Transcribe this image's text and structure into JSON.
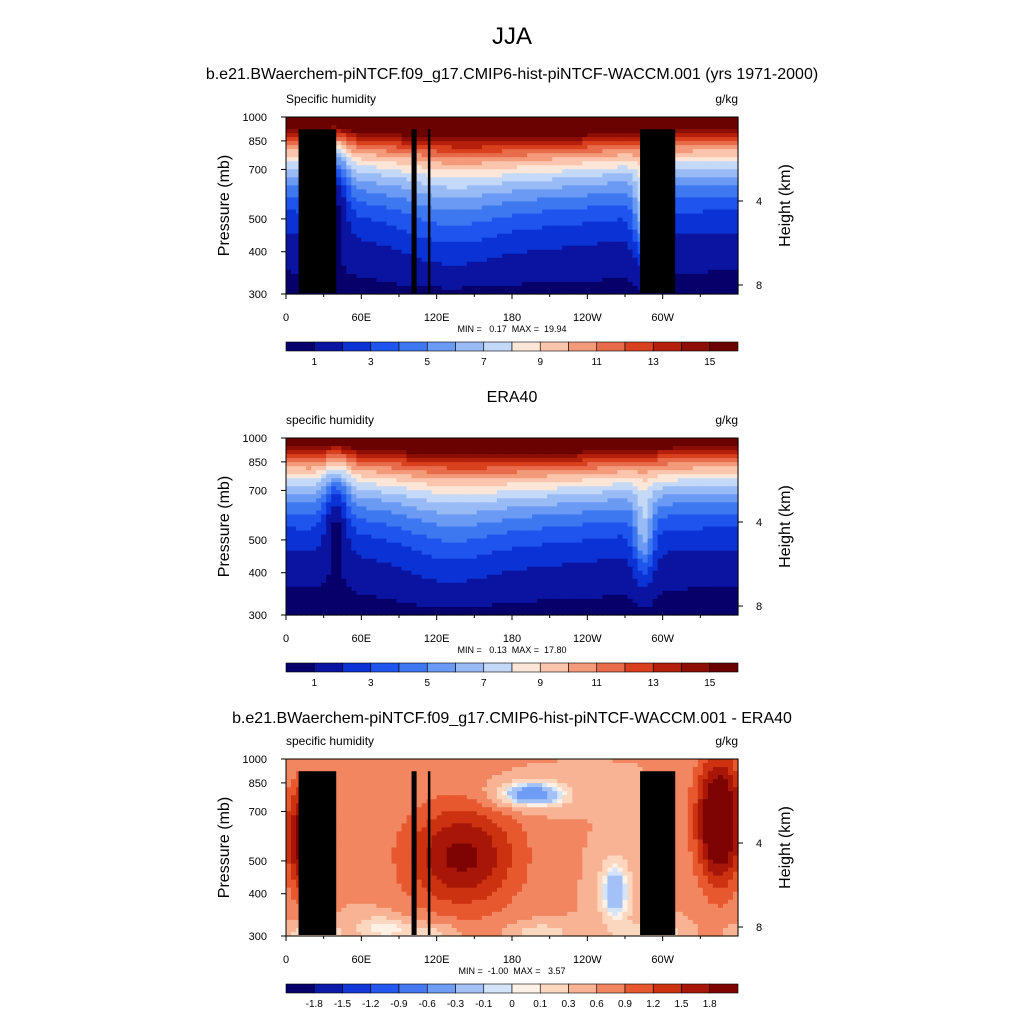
{
  "figure": {
    "main_title": "JJA"
  },
  "panels": [
    {
      "id": "model",
      "title": "b.e21.BWaerchem-piNTCF.f09_g17.CMIP6-hist-piNTCF-WACCM.001 (yrs 1971-2000)",
      "left_label": "Specific humidity",
      "right_label": "g/kg",
      "stats": "MIN =   0.17  MAX =  19.94",
      "kind": "abs",
      "colorbar_labels": [
        "1",
        "3",
        "5",
        "7",
        "9",
        "11",
        "13",
        "15"
      ]
    },
    {
      "id": "obs",
      "title": "ERA40",
      "left_label": "specific humidity",
      "right_label": "g/kg",
      "stats": "MIN =   0.13  MAX =  17.80",
      "kind": "abs",
      "colorbar_labels": [
        "1",
        "3",
        "5",
        "7",
        "9",
        "11",
        "13",
        "15"
      ]
    },
    {
      "id": "diff",
      "title": "b.e21.BWaerchem-piNTCF.f09_g17.CMIP6-hist-piNTCF-WACCM.001 - ERA40",
      "left_label": "specific humidity",
      "right_label": "g/kg",
      "stats": "MIN =  -1.00  MAX =   3.57",
      "kind": "diff",
      "colorbar_labels": [
        "-1.8",
        "-1.5",
        "-1.2",
        "-0.9",
        "-0.6",
        "-0.3",
        "-0.1",
        "0",
        "0.1",
        "0.3",
        "0.6",
        "0.9",
        "1.2",
        "1.5",
        "1.8"
      ]
    }
  ],
  "chart_data": [
    {
      "type": "heatmap",
      "title": "b.e21.BWaerchem-piNTCF.f09_g17.CMIP6-hist-piNTCF-WACCM.001 (yrs 1971-2000)",
      "subtitle": "Specific humidity",
      "units": "g/kg",
      "xlabel": "",
      "ylabel": "Pressure (mb)",
      "ylabel_right": "Height (km)",
      "x_ticks": [
        "0",
        "60E",
        "120E",
        "180",
        "120W",
        "60W"
      ],
      "x_tick_values": [
        0,
        60,
        120,
        180,
        240,
        300
      ],
      "xlim": [
        0,
        360
      ],
      "y_ticks": [
        "300",
        "400",
        "500",
        "700",
        "850",
        "1000"
      ],
      "y_tick_values": [
        300,
        400,
        500,
        700,
        850,
        1000
      ],
      "ylim": [
        1000,
        300
      ],
      "y_scale": "log",
      "right_ticks": [
        "8",
        "4"
      ],
      "right_tick_values": [
        8,
        4
      ],
      "min": 0.17,
      "max": 19.94,
      "contour_levels": [
        1,
        2,
        3,
        4,
        5,
        6,
        7,
        8,
        9,
        10,
        11,
        12,
        13,
        14,
        15
      ],
      "colorbar_ticks": [
        1,
        3,
        5,
        7,
        9,
        11,
        13,
        15
      ],
      "mountain_mask": [
        {
          "lon": [
            10,
            40
          ],
          "p_top": 920
        },
        {
          "lon": [
            28,
            35
          ],
          "p_top": 850
        },
        {
          "lon": [
            100,
            104
          ],
          "p_top": 920
        },
        {
          "lon": [
            113,
            115
          ],
          "p_top": 920
        },
        {
          "lon": [
            282,
            310
          ],
          "p_top": 920
        }
      ]
    },
    {
      "type": "heatmap",
      "title": "ERA40",
      "subtitle": "specific humidity",
      "units": "g/kg",
      "xlabel": "",
      "ylabel": "Pressure (mb)",
      "ylabel_right": "Height (km)",
      "x_ticks": [
        "0",
        "60E",
        "120E",
        "180",
        "120W",
        "60W"
      ],
      "x_tick_values": [
        0,
        60,
        120,
        180,
        240,
        300
      ],
      "xlim": [
        0,
        360
      ],
      "y_ticks": [
        "300",
        "400",
        "500",
        "700",
        "850",
        "1000"
      ],
      "y_tick_values": [
        300,
        400,
        500,
        700,
        850,
        1000
      ],
      "ylim": [
        1000,
        300
      ],
      "y_scale": "log",
      "right_ticks": [
        "8",
        "4"
      ],
      "right_tick_values": [
        8,
        4
      ],
      "min": 0.13,
      "max": 17.8,
      "contour_levels": [
        1,
        2,
        3,
        4,
        5,
        6,
        7,
        8,
        9,
        10,
        11,
        12,
        13,
        14,
        15
      ],
      "colorbar_ticks": [
        1,
        3,
        5,
        7,
        9,
        11,
        13,
        15
      ],
      "mountain_mask": []
    },
    {
      "type": "heatmap",
      "title": "b.e21.BWaerchem-piNTCF.f09_g17.CMIP6-hist-piNTCF-WACCM.001 - ERA40",
      "subtitle": "specific humidity",
      "units": "g/kg",
      "xlabel": "",
      "ylabel": "Pressure (mb)",
      "ylabel_right": "Height (km)",
      "x_ticks": [
        "0",
        "60E",
        "120E",
        "180",
        "120W",
        "60W"
      ],
      "x_tick_values": [
        0,
        60,
        120,
        180,
        240,
        300
      ],
      "xlim": [
        0,
        360
      ],
      "y_ticks": [
        "300",
        "400",
        "500",
        "700",
        "850",
        "1000"
      ],
      "y_tick_values": [
        300,
        400,
        500,
        700,
        850,
        1000
      ],
      "ylim": [
        1000,
        300
      ],
      "y_scale": "log",
      "right_ticks": [
        "8",
        "4"
      ],
      "right_tick_values": [
        8,
        4
      ],
      "min": -1.0,
      "max": 3.57,
      "contour_levels": [
        -1.8,
        -1.5,
        -1.2,
        -0.9,
        -0.6,
        -0.3,
        -0.1,
        0,
        0.1,
        0.3,
        0.6,
        0.9,
        1.2,
        1.5,
        1.8
      ],
      "colorbar_ticks": [
        -1.8,
        -1.5,
        -1.2,
        -0.9,
        -0.6,
        -0.3,
        -0.1,
        0,
        0.1,
        0.3,
        0.6,
        0.9,
        1.2,
        1.5,
        1.8
      ],
      "mountain_mask": [
        {
          "lon": [
            10,
            40
          ],
          "p_top": 920
        },
        {
          "lon": [
            28,
            35
          ],
          "p_top": 850
        },
        {
          "lon": [
            100,
            104
          ],
          "p_top": 920
        },
        {
          "lon": [
            113,
            115
          ],
          "p_top": 920
        },
        {
          "lon": [
            282,
            310
          ],
          "p_top": 920
        }
      ]
    }
  ],
  "colors": {
    "abs_palette": [
      "#08006a",
      "#0a14a0",
      "#0b32d4",
      "#1f55ee",
      "#3e78f0",
      "#6a9af3",
      "#98baf5",
      "#c4d8f8",
      "#fbe6d8",
      "#fac5ac",
      "#f39a7a",
      "#e86c4c",
      "#d9401e",
      "#b51f0b",
      "#8c0e04",
      "#6a0202"
    ],
    "diff_palette": [
      "#08006a",
      "#0b1aa8",
      "#1237d8",
      "#2457ee",
      "#4479f2",
      "#6f9cf4",
      "#a3c1f7",
      "#d4e4f9",
      "#fdf0e4",
      "#fbd7c0",
      "#f8b394",
      "#f28660",
      "#e8582e",
      "#cc3210",
      "#a81608",
      "#7e0403"
    ],
    "mountain": "#000000"
  }
}
